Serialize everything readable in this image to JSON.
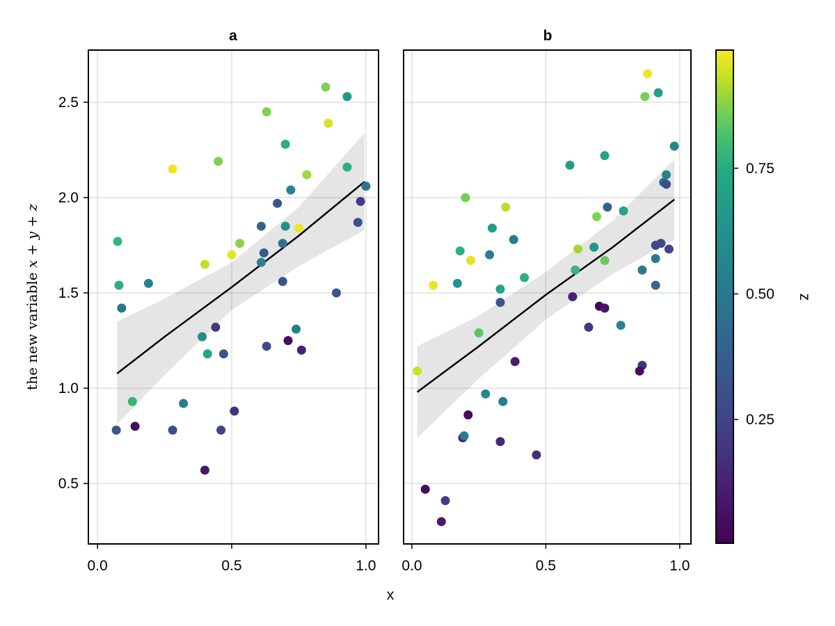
{
  "chart_data": {
    "type": "scatter",
    "shared": {
      "ylabel_text": "the new variable ",
      "ylabel_math": [
        "x",
        " + ",
        "y",
        " + ",
        "z"
      ],
      "xlabel": "x",
      "ylim": [
        0.183,
        2.774
      ],
      "yticks": [
        0.5,
        1.0,
        1.5,
        2.0,
        2.5
      ],
      "ytick_labels": [
        "0.5",
        "1.0",
        "1.5",
        "2.0",
        "2.5"
      ],
      "xticks": [
        0.0,
        0.5,
        1.0
      ],
      "xtick_labels": [
        "0.0",
        "0.5",
        "1.0"
      ],
      "grid": true
    },
    "colorbar": {
      "label": "z",
      "colormap": "viridis",
      "range": [
        0.004,
        0.985
      ],
      "ticks": [
        0.25,
        0.5,
        0.75
      ],
      "tick_labels": [
        "0.25",
        "0.50",
        "0.75"
      ]
    },
    "panels": [
      {
        "title": "a",
        "xlim": [
          -0.034,
          1.047
        ],
        "regression": {
          "x": [
            0.073,
            0.25,
            0.5,
            0.75,
            0.995
          ],
          "y": [
            1.077,
            1.27,
            1.53,
            1.8,
            2.084
          ],
          "ci_upper": [
            1.35,
            1.47,
            1.66,
            1.95,
            2.34
          ],
          "ci_lower": [
            0.81,
            1.07,
            1.41,
            1.64,
            1.83
          ]
        },
        "points": [
          {
            "x": 0.075,
            "y": 1.77,
            "z": 0.78
          },
          {
            "x": 0.08,
            "y": 1.54,
            "z": 0.76
          },
          {
            "x": 0.09,
            "y": 1.42,
            "z": 0.48
          },
          {
            "x": 0.19,
            "y": 1.55,
            "z": 0.55
          },
          {
            "x": 0.13,
            "y": 0.93,
            "z": 0.78
          },
          {
            "x": 0.14,
            "y": 0.8,
            "z": 0.05
          },
          {
            "x": 0.07,
            "y": 0.78,
            "z": 0.33
          },
          {
            "x": 0.28,
            "y": 2.15,
            "z": 0.97
          },
          {
            "x": 0.28,
            "y": 0.78,
            "z": 0.3
          },
          {
            "x": 0.32,
            "y": 0.92,
            "z": 0.52
          },
          {
            "x": 0.4,
            "y": 1.65,
            "z": 0.93
          },
          {
            "x": 0.39,
            "y": 1.27,
            "z": 0.6
          },
          {
            "x": 0.44,
            "y": 1.32,
            "z": 0.2
          },
          {
            "x": 0.41,
            "y": 1.18,
            "z": 0.72
          },
          {
            "x": 0.47,
            "y": 1.18,
            "z": 0.33
          },
          {
            "x": 0.46,
            "y": 0.78,
            "z": 0.25
          },
          {
            "x": 0.4,
            "y": 0.57,
            "z": 0.08
          },
          {
            "x": 0.51,
            "y": 0.88,
            "z": 0.18
          },
          {
            "x": 0.45,
            "y": 2.19,
            "z": 0.87
          },
          {
            "x": 0.5,
            "y": 1.7,
            "z": 0.96
          },
          {
            "x": 0.53,
            "y": 1.76,
            "z": 0.88
          },
          {
            "x": 0.63,
            "y": 2.45,
            "z": 0.87
          },
          {
            "x": 0.61,
            "y": 1.85,
            "z": 0.4
          },
          {
            "x": 0.62,
            "y": 1.71,
            "z": 0.35
          },
          {
            "x": 0.61,
            "y": 1.66,
            "z": 0.55
          },
          {
            "x": 0.63,
            "y": 1.22,
            "z": 0.28
          },
          {
            "x": 0.67,
            "y": 1.97,
            "z": 0.33
          },
          {
            "x": 0.7,
            "y": 2.28,
            "z": 0.76
          },
          {
            "x": 0.72,
            "y": 2.04,
            "z": 0.56
          },
          {
            "x": 0.7,
            "y": 1.85,
            "z": 0.62
          },
          {
            "x": 0.69,
            "y": 1.76,
            "z": 0.45
          },
          {
            "x": 0.69,
            "y": 1.56,
            "z": 0.32
          },
          {
            "x": 0.71,
            "y": 1.25,
            "z": 0.06
          },
          {
            "x": 0.74,
            "y": 1.31,
            "z": 0.52
          },
          {
            "x": 0.76,
            "y": 1.2,
            "z": 0.12
          },
          {
            "x": 0.75,
            "y": 1.84,
            "z": 0.97
          },
          {
            "x": 0.78,
            "y": 2.12,
            "z": 0.9
          },
          {
            "x": 0.85,
            "y": 2.58,
            "z": 0.87
          },
          {
            "x": 0.86,
            "y": 2.39,
            "z": 0.95
          },
          {
            "x": 0.93,
            "y": 2.53,
            "z": 0.66
          },
          {
            "x": 0.93,
            "y": 2.16,
            "z": 0.76
          },
          {
            "x": 0.89,
            "y": 1.5,
            "z": 0.33
          },
          {
            "x": 1.0,
            "y": 2.06,
            "z": 0.48
          },
          {
            "x": 0.98,
            "y": 1.98,
            "z": 0.22
          },
          {
            "x": 0.97,
            "y": 1.87,
            "z": 0.32
          }
        ]
      },
      {
        "title": "b",
        "xlim": [
          -0.031,
          1.042
        ],
        "regression": {
          "x": [
            0.02,
            0.25,
            0.5,
            0.75,
            0.98
          ],
          "y": [
            0.98,
            1.22,
            1.49,
            1.74,
            1.99
          ],
          "ci_upper": [
            1.22,
            1.38,
            1.61,
            1.88,
            2.2
          ],
          "ci_lower": [
            0.74,
            1.05,
            1.36,
            1.6,
            1.78
          ]
        },
        "points": [
          {
            "x": 0.2,
            "y": 2.0,
            "z": 0.86
          },
          {
            "x": 0.35,
            "y": 1.95,
            "z": 0.92
          },
          {
            "x": 0.3,
            "y": 1.84,
            "z": 0.68
          },
          {
            "x": 0.38,
            "y": 1.78,
            "z": 0.5
          },
          {
            "x": 0.18,
            "y": 1.72,
            "z": 0.76
          },
          {
            "x": 0.22,
            "y": 1.67,
            "z": 0.96
          },
          {
            "x": 0.29,
            "y": 1.7,
            "z": 0.54
          },
          {
            "x": 0.08,
            "y": 1.54,
            "z": 0.97
          },
          {
            "x": 0.17,
            "y": 1.55,
            "z": 0.64
          },
          {
            "x": 0.33,
            "y": 1.52,
            "z": 0.74
          },
          {
            "x": 0.42,
            "y": 1.58,
            "z": 0.76
          },
          {
            "x": 0.33,
            "y": 1.45,
            "z": 0.33
          },
          {
            "x": 0.25,
            "y": 1.29,
            "z": 0.83
          },
          {
            "x": 0.02,
            "y": 1.09,
            "z": 0.94
          },
          {
            "x": 0.385,
            "y": 1.14,
            "z": 0.1
          },
          {
            "x": 0.275,
            "y": 0.97,
            "z": 0.58
          },
          {
            "x": 0.34,
            "y": 0.93,
            "z": 0.52
          },
          {
            "x": 0.21,
            "y": 0.86,
            "z": 0.04
          },
          {
            "x": 0.19,
            "y": 0.74,
            "z": 0.1
          },
          {
            "x": 0.195,
            "y": 0.75,
            "z": 0.52
          },
          {
            "x": 0.33,
            "y": 0.72,
            "z": 0.15
          },
          {
            "x": 0.465,
            "y": 0.65,
            "z": 0.16
          },
          {
            "x": 0.05,
            "y": 0.47,
            "z": 0.04
          },
          {
            "x": 0.125,
            "y": 0.41,
            "z": 0.22
          },
          {
            "x": 0.11,
            "y": 0.3,
            "z": 0.1
          },
          {
            "x": 0.88,
            "y": 2.65,
            "z": 0.97
          },
          {
            "x": 0.87,
            "y": 2.53,
            "z": 0.86
          },
          {
            "x": 0.92,
            "y": 2.55,
            "z": 0.7
          },
          {
            "x": 0.59,
            "y": 2.17,
            "z": 0.7
          },
          {
            "x": 0.72,
            "y": 2.22,
            "z": 0.72
          },
          {
            "x": 0.98,
            "y": 2.27,
            "z": 0.56
          },
          {
            "x": 0.95,
            "y": 2.12,
            "z": 0.56
          },
          {
            "x": 0.94,
            "y": 2.08,
            "z": 0.42
          },
          {
            "x": 0.95,
            "y": 2.07,
            "z": 0.3
          },
          {
            "x": 0.73,
            "y": 1.95,
            "z": 0.38
          },
          {
            "x": 0.79,
            "y": 1.93,
            "z": 0.72
          },
          {
            "x": 0.69,
            "y": 1.9,
            "z": 0.87
          },
          {
            "x": 0.62,
            "y": 1.73,
            "z": 0.9
          },
          {
            "x": 0.68,
            "y": 1.74,
            "z": 0.64
          },
          {
            "x": 0.72,
            "y": 1.67,
            "z": 0.85
          },
          {
            "x": 0.61,
            "y": 1.62,
            "z": 0.78
          },
          {
            "x": 0.91,
            "y": 1.75,
            "z": 0.26
          },
          {
            "x": 0.93,
            "y": 1.76,
            "z": 0.28
          },
          {
            "x": 0.96,
            "y": 1.73,
            "z": 0.26
          },
          {
            "x": 0.91,
            "y": 1.68,
            "z": 0.5
          },
          {
            "x": 0.86,
            "y": 1.62,
            "z": 0.5
          },
          {
            "x": 0.91,
            "y": 1.54,
            "z": 0.42
          },
          {
            "x": 0.6,
            "y": 1.48,
            "z": 0.12
          },
          {
            "x": 0.7,
            "y": 1.43,
            "z": 0.02
          },
          {
            "x": 0.72,
            "y": 1.42,
            "z": 0.08
          },
          {
            "x": 0.66,
            "y": 1.32,
            "z": 0.2
          },
          {
            "x": 0.78,
            "y": 1.33,
            "z": 0.55
          },
          {
            "x": 0.86,
            "y": 1.12,
            "z": 0.18
          },
          {
            "x": 0.85,
            "y": 1.09,
            "z": 0.04
          }
        ]
      }
    ]
  }
}
